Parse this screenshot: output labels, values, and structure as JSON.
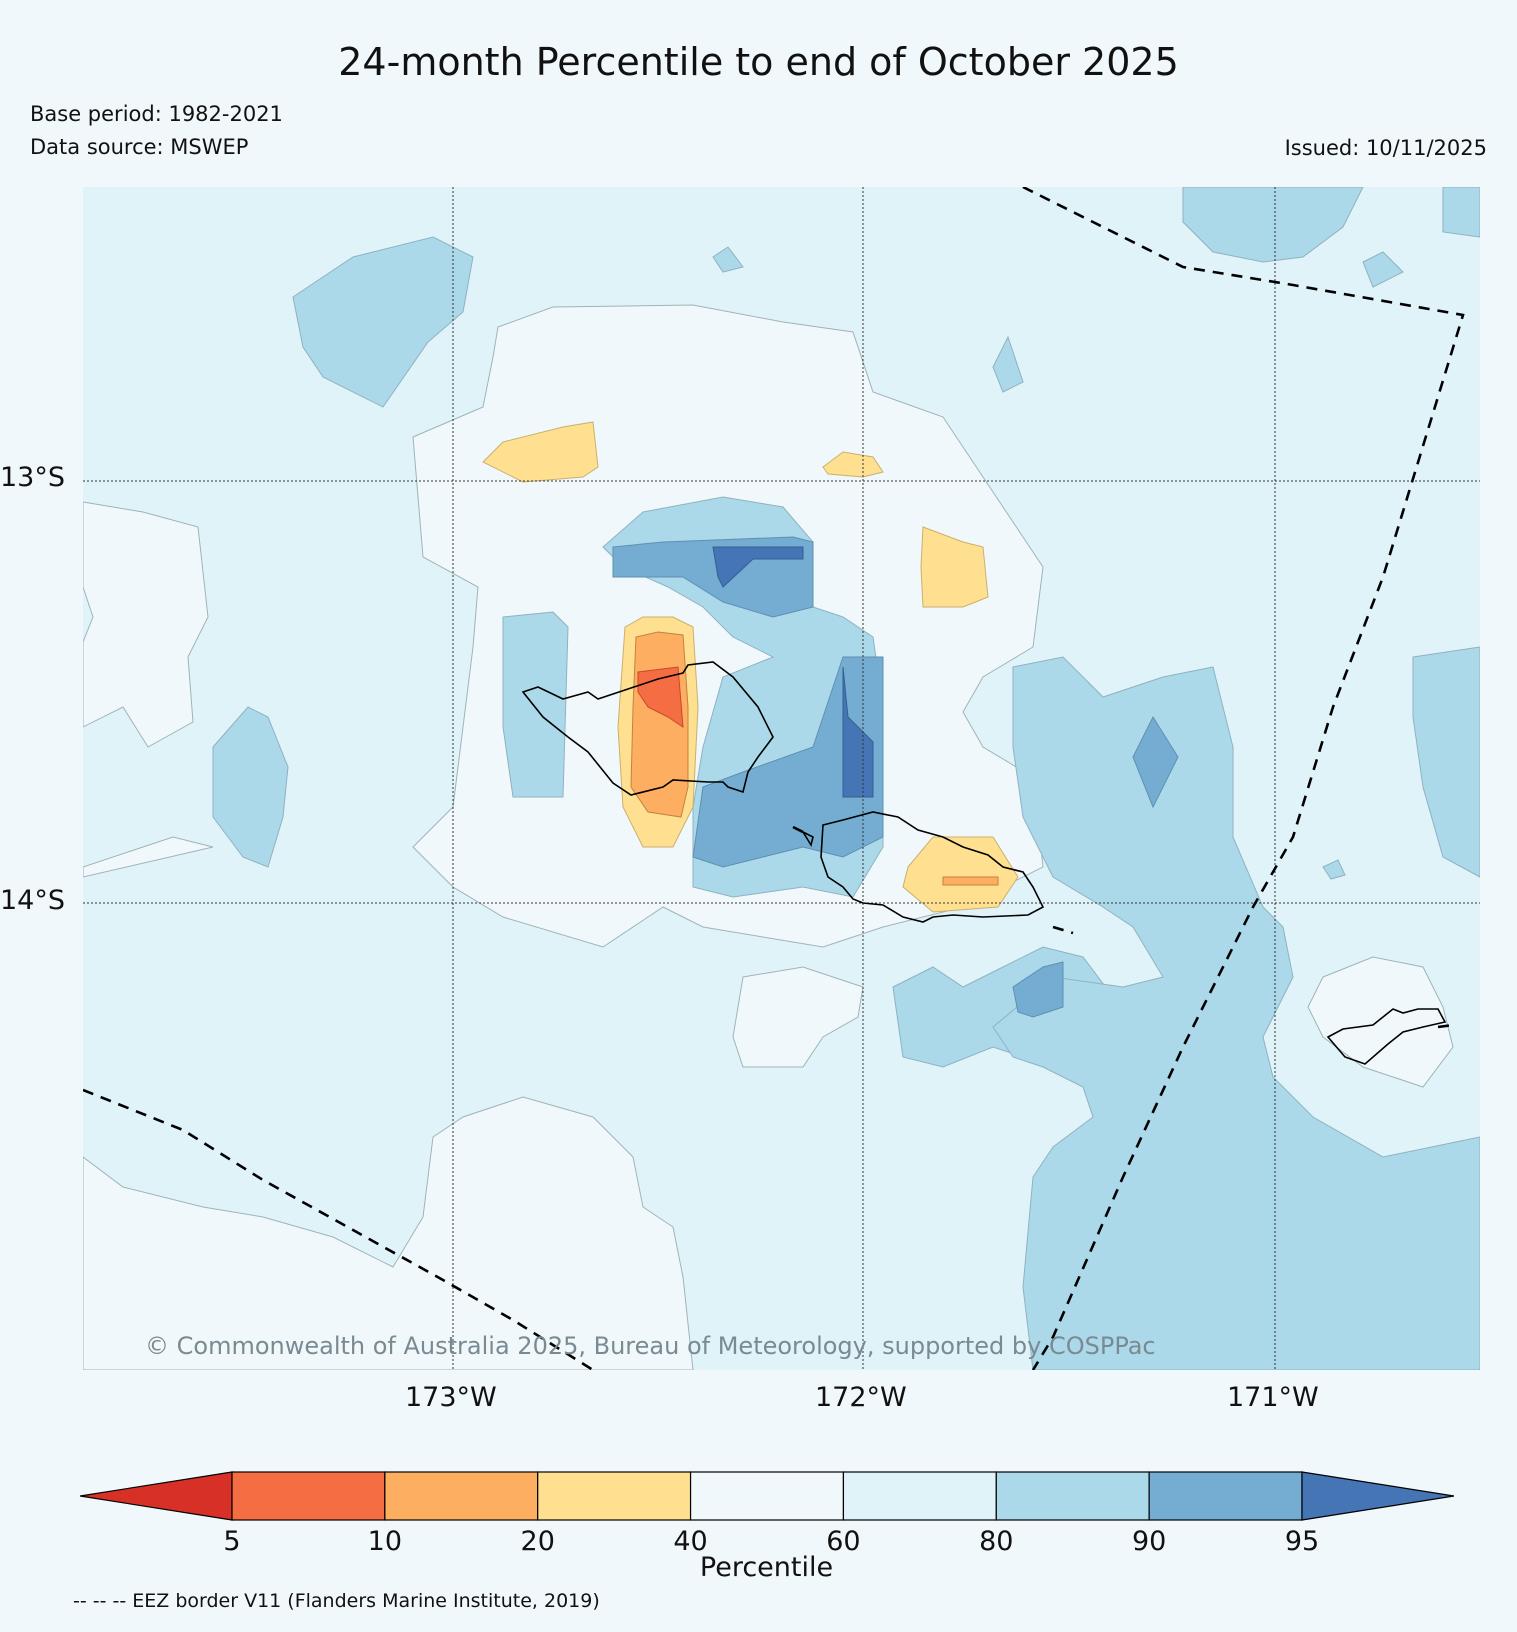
{
  "title": "24-month Percentile to end of October 2025",
  "base_period": "Base period: 1982-2021",
  "data_source": "Data source: MSWEP",
  "issued": "Issued: 10/11/2025",
  "copyright": "© Commonwealth of Australia 2025, Bureau of Meteorology, supported by COSPPac",
  "map": {
    "lat_labels": [
      "13°S",
      "14°S"
    ],
    "lon_labels": [
      "173°W",
      "172°W",
      "171°W"
    ]
  },
  "colorbar": {
    "title": "Percentile",
    "boundaries": [
      "5",
      "10",
      "20",
      "40",
      "60",
      "80",
      "90",
      "95"
    ],
    "colors": [
      "#d73027",
      "#f46d43",
      "#fdae61",
      "#fee090",
      "#f0f8fb",
      "#e0f3f8",
      "#abd9e9",
      "#74add1",
      "#4575b4"
    ]
  },
  "footnote": "-- -- -- EEZ border V11 (Flanders Marine Institute, 2019)"
}
